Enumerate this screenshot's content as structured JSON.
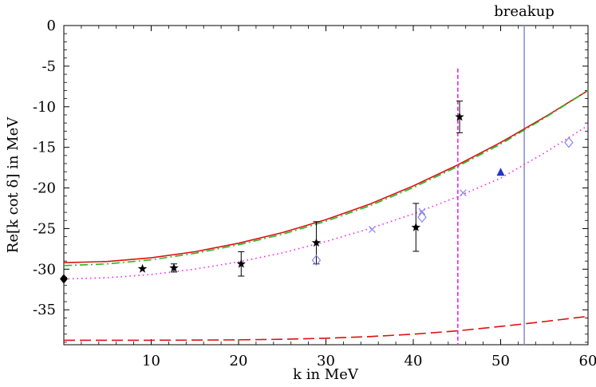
{
  "chart_data": {
    "type": "line",
    "title": "",
    "xlabel": "k in MeV",
    "ylabel": "Re[k cot δ] in MeV",
    "xlim": [
      0,
      60
    ],
    "ylim": [
      -39.3,
      0
    ],
    "xticks": [
      10,
      20,
      30,
      40,
      50,
      60
    ],
    "yticks": [
      0,
      -5,
      -10,
      -15,
      -20,
      -25,
      -30,
      -35
    ],
    "xtick_labels": [
      "10",
      "20",
      "30",
      "40",
      "50",
      "60"
    ],
    "ytick_labels": [
      "0",
      "-5",
      "-10",
      "-15",
      "-20",
      "-25",
      "-30",
      "-35"
    ],
    "vline": {
      "x": 52.7,
      "label": "breakup",
      "color": "#8888cc"
    },
    "series": [
      {
        "name": "solid-red",
        "style": "solid",
        "color": "#dd1111",
        "x": [
          0,
          5,
          10,
          15,
          20,
          25,
          30,
          35,
          40,
          45,
          50,
          55,
          60
        ],
        "y": [
          -29.2,
          -29.05,
          -28.6,
          -27.85,
          -26.8,
          -25.5,
          -23.9,
          -22.0,
          -19.75,
          -17.2,
          -14.4,
          -11.3,
          -8.0
        ]
      },
      {
        "name": "dashdot-green",
        "style": "dashdot",
        "color": "#22bb22",
        "x": [
          0,
          5,
          10,
          15,
          20,
          25,
          30,
          35,
          40,
          45,
          50,
          55,
          60
        ],
        "y": [
          -29.55,
          -29.35,
          -28.85,
          -28.05,
          -27.0,
          -25.7,
          -24.1,
          -22.2,
          -19.95,
          -17.4,
          -14.6,
          -11.4,
          -8.0
        ]
      },
      {
        "name": "dotted-magenta",
        "style": "dotted",
        "color": "#ee22ee",
        "x": [
          0,
          5,
          10,
          15,
          20,
          25,
          30,
          35,
          40,
          45,
          50,
          55,
          60
        ],
        "y": [
          -31.2,
          -31.05,
          -30.65,
          -30.0,
          -29.1,
          -28.0,
          -26.6,
          -25.0,
          -23.2,
          -21.1,
          -18.8,
          -15.7,
          -12.3
        ]
      },
      {
        "name": "long-dashed-red",
        "style": "dashed",
        "color": "#dd1111",
        "x": [
          0,
          5,
          10,
          15,
          20,
          25,
          30,
          35,
          40,
          45,
          50,
          55,
          60
        ],
        "y": [
          -38.75,
          -38.75,
          -38.75,
          -38.73,
          -38.7,
          -38.63,
          -38.5,
          -38.3,
          -38.0,
          -37.6,
          -37.05,
          -36.45,
          -35.8
        ]
      },
      {
        "name": "magenta-pole",
        "style": "dashed-vertical",
        "color": "#ee22ee",
        "x": [
          45.1,
          45.1
        ],
        "y": [
          -5.3,
          -39.3
        ]
      }
    ],
    "points": [
      {
        "marker": "star",
        "color": "#000000",
        "x": 9.0,
        "y": -29.95,
        "err": 0
      },
      {
        "marker": "star",
        "color": "#000000",
        "x": 12.6,
        "y": -29.85,
        "err": 0.5
      },
      {
        "marker": "star",
        "color": "#000000",
        "x": 20.3,
        "y": -29.35,
        "err": 1.5
      },
      {
        "marker": "star",
        "color": "#000000",
        "x": 28.9,
        "y": -26.75,
        "err": 2.6
      },
      {
        "marker": "star",
        "color": "#000000",
        "x": 40.3,
        "y": -24.85,
        "err": 2.95
      },
      {
        "marker": "star",
        "color": "#000000",
        "x": 45.3,
        "y": -11.25,
        "err": 1.95
      },
      {
        "marker": "diamond-filled",
        "color": "#000000",
        "x": 0.0,
        "y": -31.2,
        "err": 0
      },
      {
        "marker": "diamond-open",
        "color": "#8888ee",
        "x": 28.9,
        "y": -28.9,
        "err": 0
      },
      {
        "marker": "diamond-open",
        "color": "#8888ee",
        "x": 41.0,
        "y": -23.6,
        "err": 0
      },
      {
        "marker": "diamond-open",
        "color": "#8888ee",
        "x": 57.8,
        "y": -14.4,
        "err": 0
      },
      {
        "marker": "cross",
        "color": "#8888ee",
        "x": 35.3,
        "y": -25.1,
        "err": 0
      },
      {
        "marker": "cross",
        "color": "#8888ee",
        "x": 41.0,
        "y": -22.9,
        "err": 0
      },
      {
        "marker": "cross",
        "color": "#8888ee",
        "x": 45.7,
        "y": -20.6,
        "err": 0
      },
      {
        "marker": "triangle",
        "color": "#2233cc",
        "x": 50.0,
        "y": -18.1,
        "err": 0
      }
    ]
  }
}
